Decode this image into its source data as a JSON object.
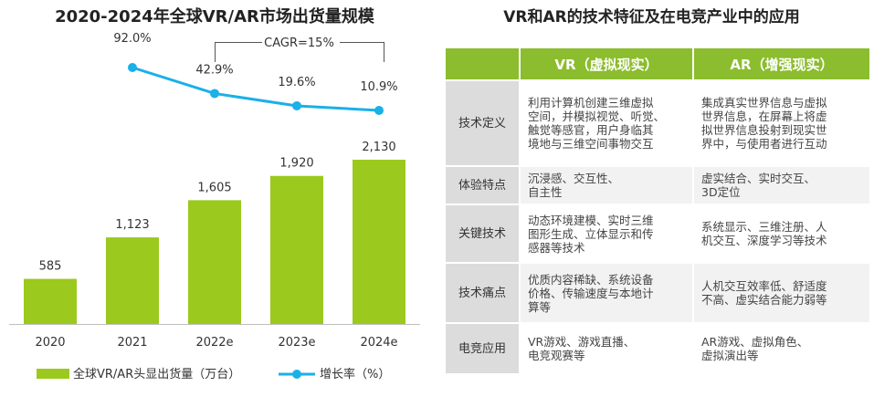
{
  "chart_data": {
    "type": "bar",
    "title": "2020-2024年全球VR/AR市场出货量规模",
    "categories": [
      "2020",
      "2021",
      "2022e",
      "2023e",
      "2024e"
    ],
    "series": [
      {
        "name": "全球VR/AR头显出货量（万台）",
        "type": "bar",
        "values": [
          585,
          1123,
          1605,
          1920,
          2130
        ],
        "labels": [
          "585",
          "1,123",
          "1,605",
          "1,920",
          "2,130"
        ],
        "color": "#9bc91e"
      },
      {
        "name": "增长率（%）",
        "type": "line",
        "values": [
          null,
          92.0,
          42.9,
          19.6,
          10.9
        ],
        "labels": [
          "",
          "92.0%",
          "42.9%",
          "19.6%",
          "10.9%"
        ],
        "color": "#1ab0e8"
      }
    ],
    "annotation": "CAGR=15%",
    "legend_position": "bottom",
    "grid": false
  },
  "table": {
    "title": "VR和AR的技术特征及在电竞产业中的应用",
    "headers": [
      "",
      "VR（虚拟现实）",
      "AR（增强现实）"
    ],
    "rows": [
      {
        "label": "技术定义",
        "vr": [
          "利用计算机创建三维虚拟",
          "空间，并模拟视觉、听觉、",
          "触觉等感官，用户身临其",
          "境地与三维空间事物交互"
        ],
        "ar": [
          "集成真实世界信息与虚拟",
          "世界信息，在屏幕上将虚",
          "拟世界信息投射到现实世",
          "界中，与使用者进行互动"
        ]
      },
      {
        "label": "体验特点",
        "vr": [
          "沉浸感、交互性、",
          "自主性"
        ],
        "ar": [
          "虚实结合、实时交互、",
          "3D定位"
        ]
      },
      {
        "label": "关键技术",
        "vr": [
          "动态环境建模、实时三维",
          "图形生成、立体显示和传",
          "感器等技术"
        ],
        "ar": [
          "系统显示、三维注册、人",
          "机交互、深度学习等技术"
        ]
      },
      {
        "label": "技术痛点",
        "vr": [
          "优质内容稀缺、系统设备",
          "价格、传输速度与本地计",
          "算等"
        ],
        "ar": [
          "人机交互效率低、舒适度",
          "不高、虚实结合能力弱等"
        ]
      },
      {
        "label": "电竞应用",
        "vr": [
          "VR游戏、游戏直播、",
          "电竞观赛等"
        ],
        "ar": [
          "AR游戏、虚拟角色、",
          "虚拟演出等"
        ]
      }
    ]
  }
}
